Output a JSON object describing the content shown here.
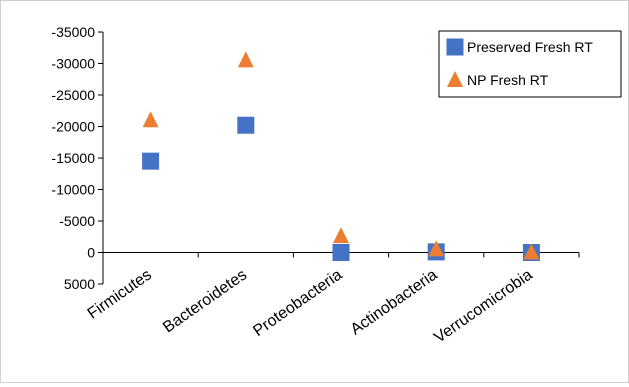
{
  "chart_data": {
    "type": "scatter",
    "categories": [
      "Firmicutes",
      "Bacteroidetes",
      "Proteobacteria",
      "Actinobacteria",
      "Verrucomicrobia"
    ],
    "series": [
      {
        "name": "Preserved Fresh RT",
        "marker": "square",
        "color": "#4472C4",
        "values": [
          -14500,
          -20200,
          0,
          -100,
          0
        ]
      },
      {
        "name": "NP Fresh RT",
        "marker": "triangle",
        "color": "#ED7D31",
        "values": [
          -21000,
          -30500,
          -2600,
          -500,
          0
        ]
      }
    ],
    "y_ticks": [
      -35000,
      -30000,
      -25000,
      -20000,
      -15000,
      -10000,
      -5000,
      0,
      5000
    ],
    "y_tick_labels": [
      "-35000",
      "-30000",
      "-25000",
      "-20000",
      "-15000",
      "-10000",
      "-5000",
      "0",
      "5000"
    ],
    "ylim": [
      -35000,
      5000
    ],
    "y_inverted": true,
    "x_axis_at": 0,
    "grid": false,
    "legend_position": "top-right",
    "title": "",
    "xlabel": "",
    "ylabel": ""
  }
}
